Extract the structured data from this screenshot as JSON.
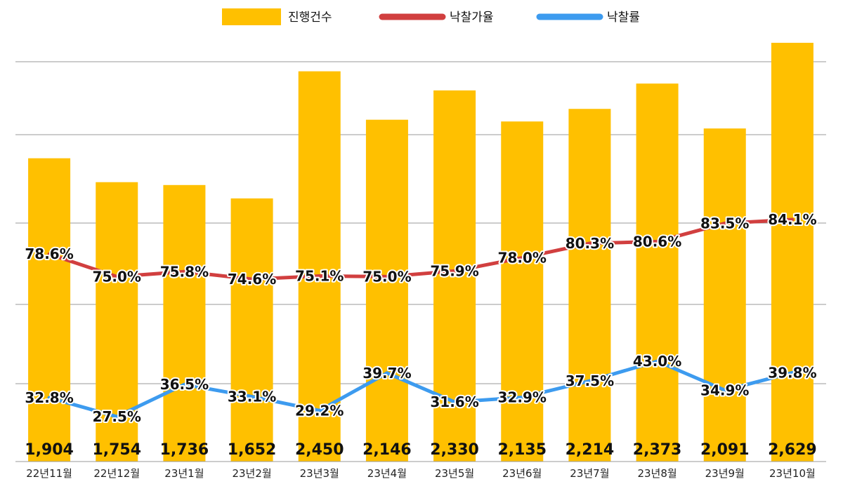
{
  "chart_data": {
    "type": "bar",
    "categories": [
      "22년11월",
      "22년12월",
      "23년1월",
      "23년2월",
      "23년3월",
      "23년4월",
      "23년5월",
      "23년6월",
      "23년7월",
      "23년8월",
      "23년9월",
      "23년10월"
    ],
    "series": [
      {
        "name": "진행건수",
        "type": "bar",
        "axis": "left",
        "color": "#FFC000",
        "values": [
          1904,
          1754,
          1736,
          1652,
          2450,
          2146,
          2330,
          2135,
          2214,
          2373,
          2091,
          2629
        ],
        "labels": [
          "1,904",
          "1,754",
          "1,736",
          "1,652",
          "2,450",
          "2,146",
          "2,330",
          "2,135",
          "2,214",
          "2,373",
          "2,091",
          "2,629"
        ]
      },
      {
        "name": "낙찰가율",
        "type": "line",
        "axis": "right",
        "color": "#D13F3F",
        "values": [
          78.6,
          75.0,
          75.8,
          74.6,
          75.1,
          75.0,
          75.9,
          78.0,
          80.3,
          80.6,
          83.5,
          84.1
        ],
        "labels": [
          "78.6%",
          "75.0%",
          "75.8%",
          "74.6%",
          "75.1%",
          "75.0%",
          "75.9%",
          "78.0%",
          "80.3%",
          "80.6%",
          "83.5%",
          "84.1%"
        ]
      },
      {
        "name": "낙찰률",
        "type": "line",
        "axis": "right",
        "color": "#3D9BEF",
        "values": [
          32.8,
          27.5,
          36.5,
          33.1,
          29.2,
          39.7,
          31.6,
          32.9,
          37.5,
          43.0,
          34.9,
          39.8
        ],
        "labels": [
          "32.8%",
          "27.5%",
          "36.5%",
          "33.1%",
          "29.2%",
          "39.7%",
          "31.6%",
          "32.9%",
          "37.5%",
          "43.0%",
          "34.9%",
          "39.8%"
        ]
      }
    ],
    "legend_position": "top-center",
    "grid": true,
    "ylim_left": [
      0,
      2700
    ],
    "ylim_right": [
      20,
      100
    ]
  }
}
